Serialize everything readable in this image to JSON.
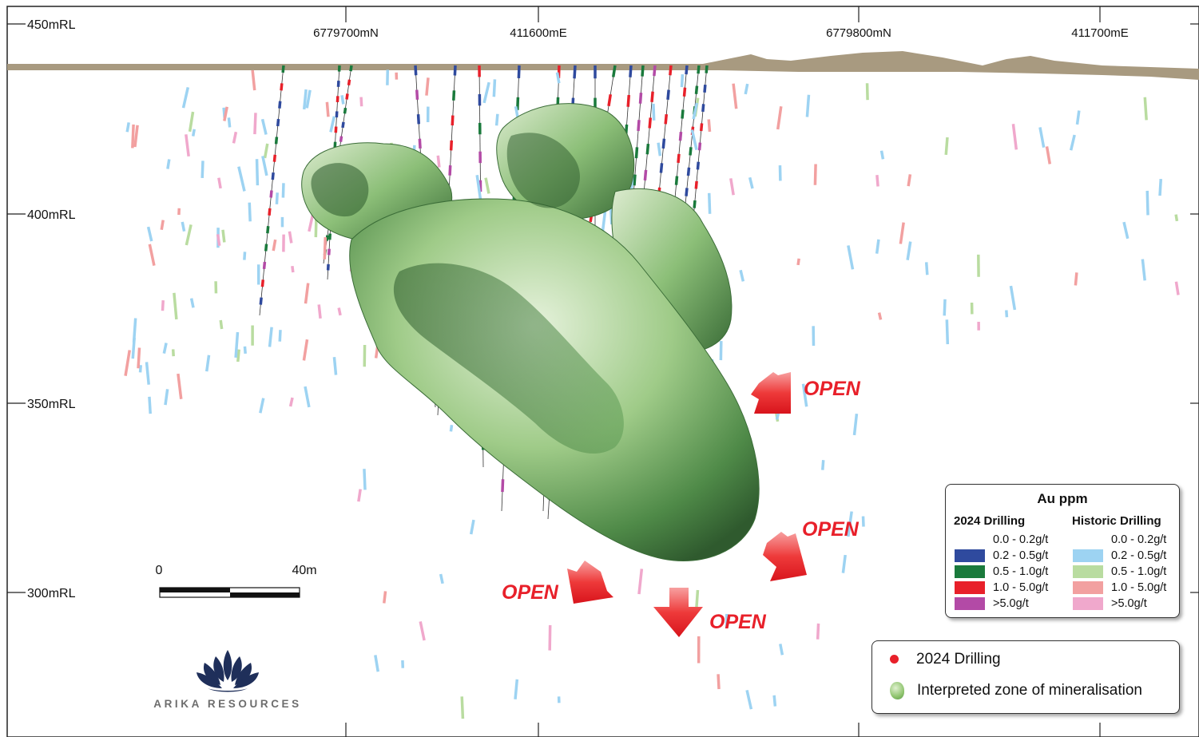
{
  "figure": {
    "elevation_labels": [
      "450mRL",
      "400mRL",
      "350mRL",
      "300mRL"
    ],
    "grid_labels": [
      "6779700mN",
      "411600mE",
      "6779800mN",
      "411700mE"
    ],
    "open_label": "OPEN",
    "scale_bar": {
      "start": "0",
      "end": "40m"
    }
  },
  "au_legend": {
    "title": "Au ppm",
    "drilling_2024": {
      "heading": "2024 Drilling",
      "rows": [
        {
          "label": "0.0 - 0.2g/t",
          "color": ""
        },
        {
          "label": "0.2 - 0.5g/t",
          "color": "#2f4a9e"
        },
        {
          "label": "0.5 - 1.0g/t",
          "color": "#1a7a3c"
        },
        {
          "label": "1.0 - 5.0g/t",
          "color": "#e8202a"
        },
        {
          "label": ">5.0g/t",
          "color": "#b34aa6"
        }
      ]
    },
    "historic": {
      "heading": "Historic Drilling",
      "rows": [
        {
          "label": "0.0 - 0.2g/t",
          "color": ""
        },
        {
          "label": "0.2 - 0.5g/t",
          "color": "#9dd3f2"
        },
        {
          "label": "0.5 - 1.0g/t",
          "color": "#b9dca0"
        },
        {
          "label": "1.0 - 5.0g/t",
          "color": "#f2a0a0"
        },
        {
          "label": ">5.0g/t",
          "color": "#f0a8cc"
        }
      ]
    }
  },
  "zone_legend": {
    "drilling_label": "2024 Drilling",
    "zone_label": "Interpreted zone of mineralisation",
    "dot_color": "#e8202a",
    "zone_color": "#8fc46e"
  },
  "logo": {
    "text": "ARIKA RESOURCES",
    "color": "#1f2f5a"
  },
  "colors": {
    "topo": "#a89a80",
    "open": "#e8202a",
    "body_light": "#c9e4b4",
    "body_dark": "#2f5a2e"
  }
}
